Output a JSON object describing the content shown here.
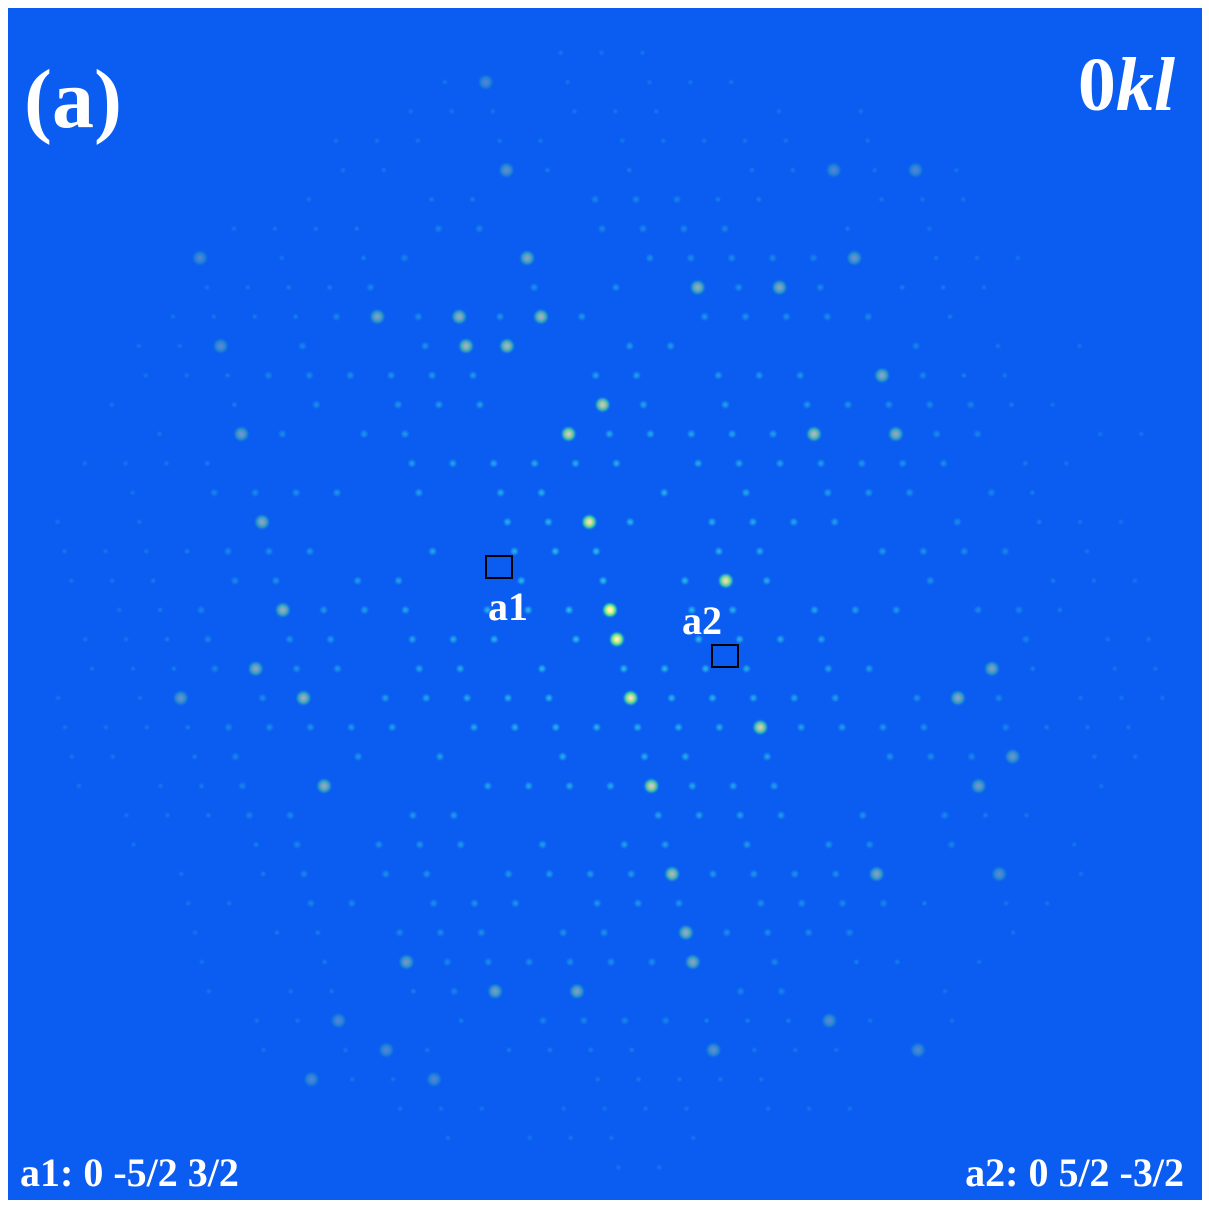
{
  "panel_label": "(a)",
  "plane": {
    "index": "0",
    "italic": "kl"
  },
  "markers": [
    {
      "label": "a1"
    },
    {
      "label": "a2"
    }
  ],
  "captions": [
    "a1: 0 -5/2 3/2",
    "a2: 0 5/2 -3/2"
  ]
}
